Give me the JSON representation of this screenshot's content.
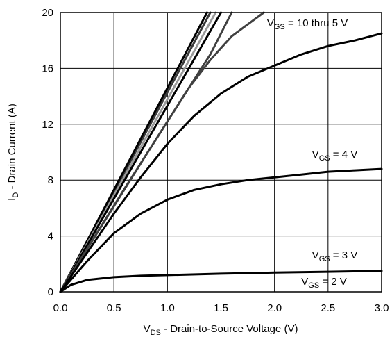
{
  "chart_data": {
    "type": "line",
    "xlabel_main": "V",
    "xlabel_sub": "DS",
    "xlabel_rest": " - Drain-to-Source Voltage (V)",
    "ylabel_main": "I",
    "ylabel_sub": "D",
    "ylabel_rest": " - Drain Current (A)",
    "xlim": [
      0,
      3.0
    ],
    "ylim": [
      0,
      20
    ],
    "xticks": [
      "0.0",
      "0.5",
      "1.0",
      "1.5",
      "2.0",
      "2.5",
      "3.0"
    ],
    "yticks": [
      "0",
      "4",
      "8",
      "12",
      "16",
      "20"
    ],
    "grid": true,
    "annotations": [
      {
        "main": "V",
        "sub": "GS",
        "rest": " = 10 thru 5 V",
        "x": 1.93,
        "y": 19.0
      },
      {
        "main": "V",
        "sub": "GS",
        "rest": " = 4 V",
        "x": 2.35,
        "y": 9.6
      },
      {
        "main": "V",
        "sub": "GS",
        "rest": " = 3 V",
        "x": 2.35,
        "y": 2.4
      },
      {
        "main": "V",
        "sub": "GS",
        "rest": " = 2 V",
        "x": 2.25,
        "y": 0.5
      }
    ],
    "series": [
      {
        "color": "#3a3a3a",
        "x": [
          0,
          1.4
        ],
        "y": [
          0,
          20
        ]
      },
      {
        "color": "#000000",
        "x": [
          0,
          1.37
        ],
        "y": [
          0,
          20
        ]
      },
      {
        "color": "#9a9a9a",
        "x": [
          0,
          1.45
        ],
        "y": [
          0,
          20
        ]
      },
      {
        "color": "#000000",
        "x": [
          0,
          1.5
        ],
        "y": [
          0,
          20
        ]
      },
      {
        "color": "#404040",
        "x": [
          0,
          0.3,
          0.6,
          0.9,
          1.2,
          1.4,
          1.6
        ],
        "y": [
          0,
          3.7,
          7.4,
          11.0,
          14.6,
          17.0,
          20.0
        ]
      },
      {
        "color": "#404040",
        "x": [
          0,
          0.4,
          0.8,
          1.0,
          1.2,
          1.4,
          1.6,
          1.9
        ],
        "y": [
          0,
          4.9,
          9.8,
          12.2,
          14.6,
          16.6,
          18.3,
          20.0
        ]
      },
      {
        "color": "#000000",
        "x": [
          0,
          0.25,
          0.5,
          0.75,
          1.0,
          1.25,
          1.5,
          1.75,
          2.0,
          2.25,
          2.5,
          2.75,
          3.0
        ],
        "y": [
          0,
          2.8,
          5.6,
          8.2,
          10.6,
          12.6,
          14.2,
          15.4,
          16.2,
          17.0,
          17.6,
          18.0,
          18.5
        ]
      },
      {
        "color": "#000000",
        "x": [
          0,
          0.25,
          0.5,
          0.75,
          1.0,
          1.25,
          1.5,
          1.75,
          2.0,
          2.25,
          2.5,
          2.75,
          3.0
        ],
        "y": [
          0,
          2.2,
          4.2,
          5.6,
          6.6,
          7.3,
          7.7,
          8.0,
          8.2,
          8.4,
          8.6,
          8.7,
          8.8
        ]
      },
      {
        "color": "#000000",
        "x": [
          0,
          0.1,
          0.25,
          0.5,
          0.75,
          1.0,
          1.5,
          2.0,
          2.5,
          3.0
        ],
        "y": [
          0,
          0.5,
          0.85,
          1.05,
          1.15,
          1.2,
          1.3,
          1.38,
          1.44,
          1.5
        ]
      }
    ]
  }
}
